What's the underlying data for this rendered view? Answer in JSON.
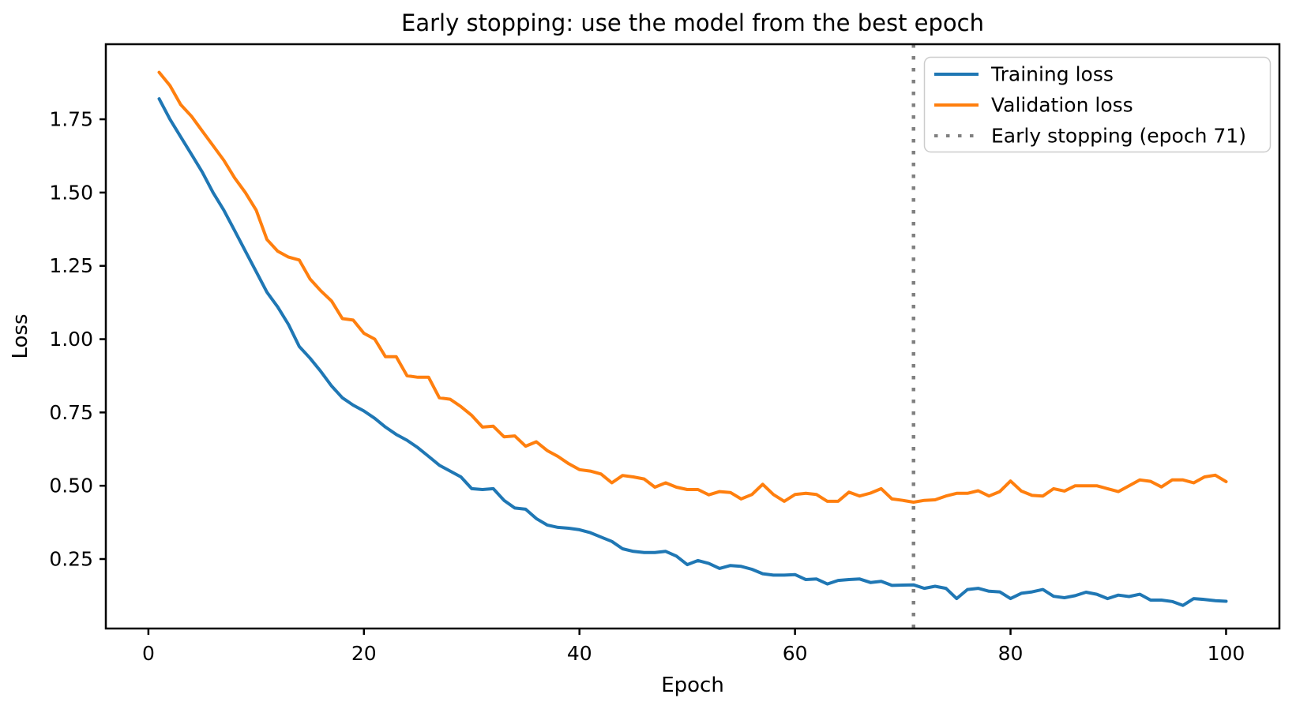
{
  "chart_data": {
    "type": "line",
    "title": "Early stopping: use the model from the best epoch",
    "xlabel": "Epoch",
    "ylabel": "Loss",
    "grid": false,
    "legend_position": "upper right",
    "xlim": [
      -3.95,
      104.95
    ],
    "ylim": [
      0.013,
      2.006
    ],
    "xticks": [
      0,
      20,
      40,
      60,
      80,
      100
    ],
    "yticks": [
      0.25,
      0.5,
      0.75,
      1.0,
      1.25,
      1.5,
      1.75
    ],
    "ytick_labels": [
      "0.25",
      "0.50",
      "0.75",
      "1.00",
      "1.25",
      "1.50",
      "1.75"
    ],
    "x": [
      1,
      2,
      3,
      4,
      5,
      6,
      7,
      8,
      9,
      10,
      11,
      12,
      13,
      14,
      15,
      16,
      17,
      18,
      19,
      20,
      21,
      22,
      23,
      24,
      25,
      26,
      27,
      28,
      29,
      30,
      31,
      32,
      33,
      34,
      35,
      36,
      37,
      38,
      39,
      40,
      41,
      42,
      43,
      44,
      45,
      46,
      47,
      48,
      49,
      50,
      51,
      52,
      53,
      54,
      55,
      56,
      57,
      58,
      59,
      60,
      61,
      62,
      63,
      64,
      65,
      66,
      67,
      68,
      69,
      70,
      71,
      72,
      73,
      74,
      75,
      76,
      77,
      78,
      79,
      80,
      81,
      82,
      83,
      84,
      85,
      86,
      87,
      88,
      89,
      90,
      91,
      92,
      93,
      94,
      95,
      96,
      97,
      98,
      99,
      100
    ],
    "series": [
      {
        "name": "Training loss",
        "color": "#1f77b4",
        "style": "solid",
        "values": [
          1.82,
          1.75,
          1.69,
          1.63,
          1.57,
          1.5,
          1.44,
          1.37,
          1.3,
          1.23,
          1.16,
          1.11,
          1.05,
          0.975,
          0.935,
          0.89,
          0.84,
          0.8,
          0.775,
          0.755,
          0.73,
          0.7,
          0.675,
          0.655,
          0.63,
          0.6,
          0.57,
          0.55,
          0.53,
          0.49,
          0.487,
          0.49,
          0.45,
          0.424,
          0.42,
          0.388,
          0.366,
          0.358,
          0.355,
          0.35,
          0.34,
          0.325,
          0.31,
          0.285,
          0.276,
          0.272,
          0.272,
          0.276,
          0.26,
          0.231,
          0.245,
          0.235,
          0.218,
          0.228,
          0.225,
          0.215,
          0.2,
          0.195,
          0.195,
          0.197,
          0.18,
          0.182,
          0.165,
          0.177,
          0.18,
          0.182,
          0.17,
          0.174,
          0.16,
          0.161,
          0.162,
          0.15,
          0.157,
          0.15,
          0.115,
          0.146,
          0.15,
          0.14,
          0.138,
          0.115,
          0.133,
          0.138,
          0.146,
          0.123,
          0.118,
          0.125,
          0.137,
          0.13,
          0.115,
          0.127,
          0.122,
          0.13,
          0.11,
          0.11,
          0.105,
          0.092,
          0.115,
          0.112,
          0.108,
          0.106
        ]
      },
      {
        "name": "Validation loss",
        "color": "#ff7f0e",
        "style": "solid",
        "values": [
          1.91,
          1.865,
          1.8,
          1.76,
          1.71,
          1.66,
          1.61,
          1.55,
          1.5,
          1.44,
          1.34,
          1.3,
          1.28,
          1.27,
          1.205,
          1.165,
          1.13,
          1.07,
          1.065,
          1.02,
          1.0,
          0.94,
          0.94,
          0.875,
          0.87,
          0.87,
          0.8,
          0.795,
          0.77,
          0.74,
          0.7,
          0.703,
          0.667,
          0.67,
          0.635,
          0.65,
          0.62,
          0.6,
          0.575,
          0.555,
          0.55,
          0.54,
          0.51,
          0.535,
          0.53,
          0.523,
          0.495,
          0.51,
          0.495,
          0.487,
          0.487,
          0.469,
          0.48,
          0.477,
          0.455,
          0.47,
          0.505,
          0.47,
          0.447,
          0.47,
          0.474,
          0.47,
          0.447,
          0.447,
          0.478,
          0.465,
          0.475,
          0.49,
          0.455,
          0.45,
          0.444,
          0.45,
          0.452,
          0.465,
          0.474,
          0.474,
          0.483,
          0.465,
          0.48,
          0.516,
          0.482,
          0.467,
          0.465,
          0.49,
          0.482,
          0.5,
          0.5,
          0.5,
          0.49,
          0.48,
          0.5,
          0.52,
          0.515,
          0.496,
          0.52,
          0.52,
          0.51,
          0.53,
          0.536,
          0.514
        ]
      }
    ],
    "annotations": [
      {
        "label": "Early stopping (epoch 71)",
        "type": "vline",
        "x": 71,
        "color": "#808080",
        "style": "dotted"
      }
    ]
  }
}
